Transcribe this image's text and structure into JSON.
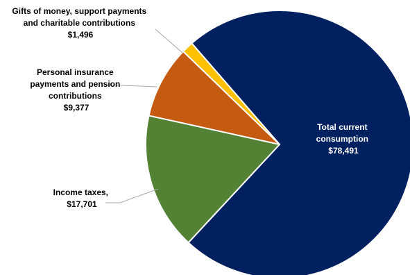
{
  "chart_data": {
    "type": "pie",
    "slices": [
      {
        "label_lines": [
          "Total current",
          "consumption"
        ],
        "value": 78491,
        "value_label": "$78,491",
        "color": "#002060"
      },
      {
        "label_lines": [
          "Income taxes,"
        ],
        "value": 17701,
        "value_label": "$17,701",
        "color": "#548235"
      },
      {
        "label_lines": [
          "Personal insurance",
          "payments and pension",
          "contributions"
        ],
        "value": 9377,
        "value_label": "$9,377",
        "color": "#c55a11"
      },
      {
        "label_lines": [
          "Gifts of money, support payments",
          "and charitable contributions"
        ],
        "value": 1496,
        "value_label": "$1,496",
        "color": "#ffc000"
      }
    ]
  }
}
